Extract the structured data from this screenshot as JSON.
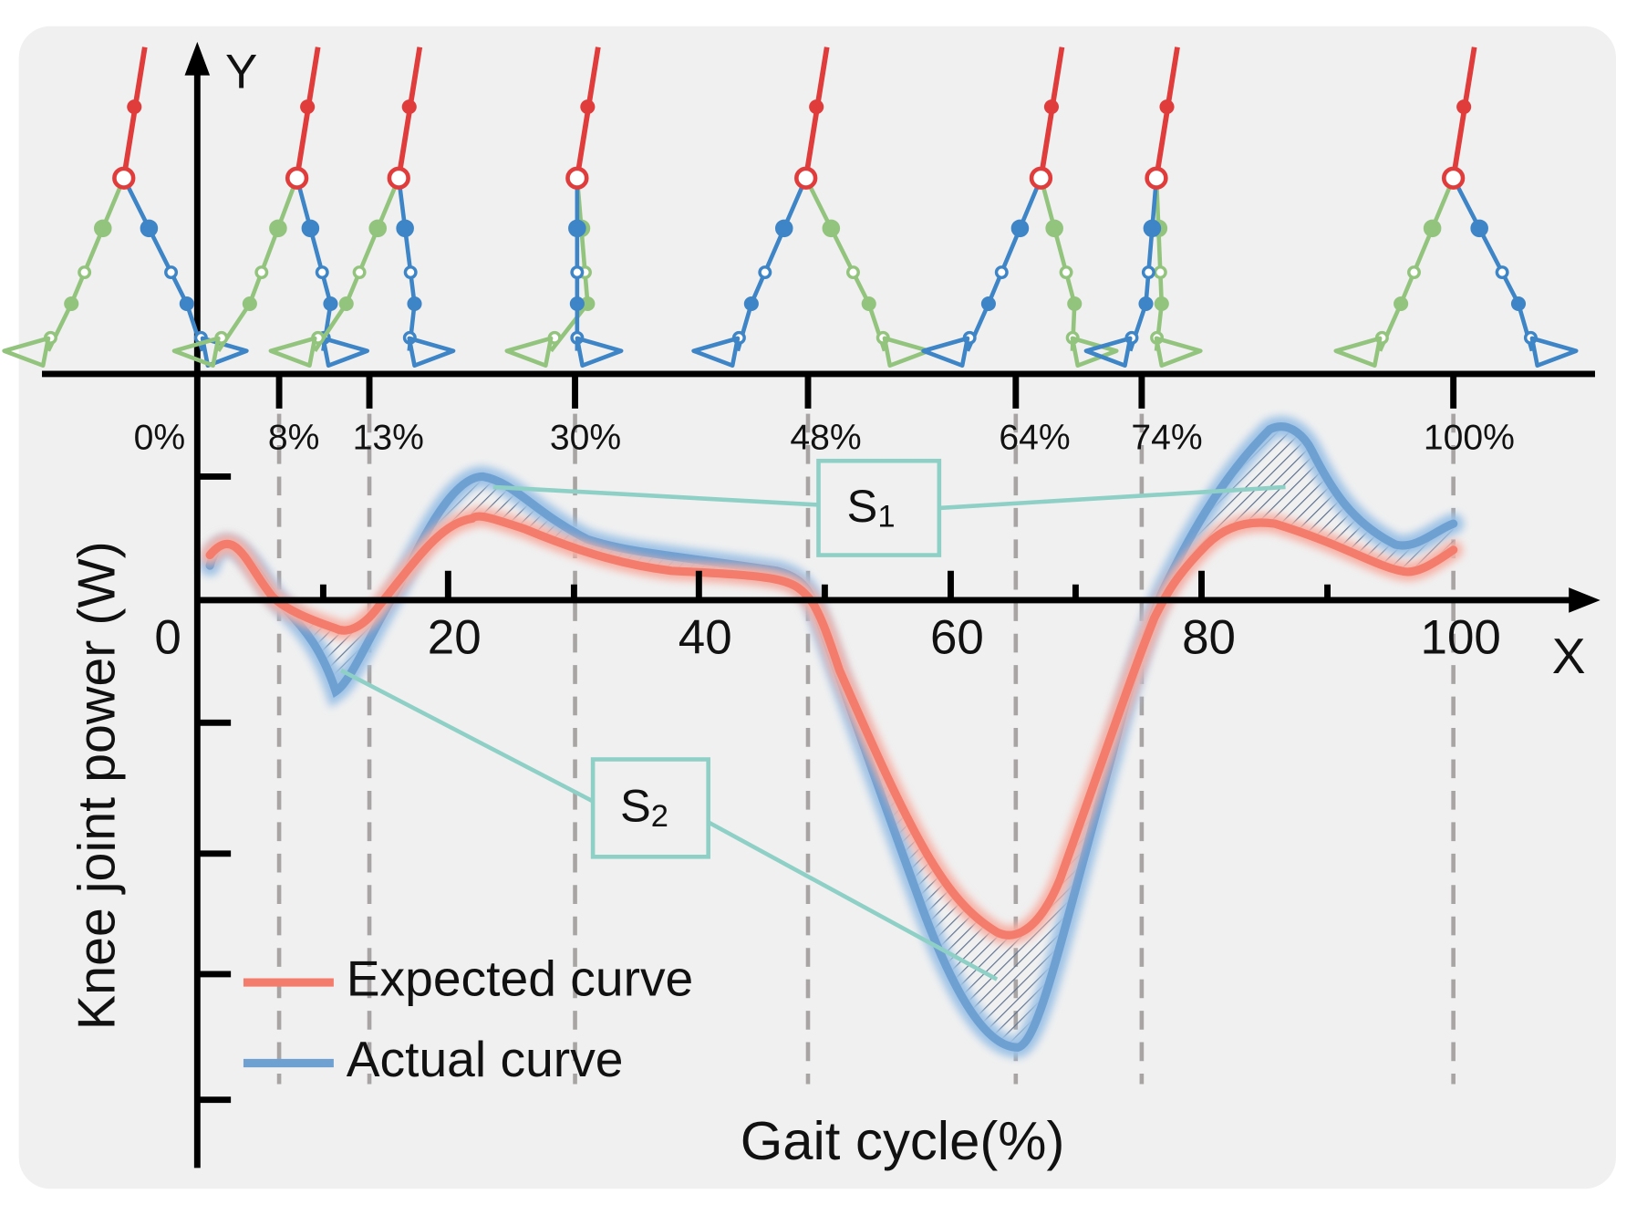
{
  "axes": {
    "y_letter": "Y",
    "x_letter": "X",
    "y_title": "Knee joint power (W)",
    "x_title": "Gait cycle(%)"
  },
  "x_tick_labels": [
    "0",
    "20",
    "40",
    "60",
    "80",
    "100"
  ],
  "phases": [
    "0%",
    "8%",
    "13%",
    "30%",
    "48%",
    "64%",
    "74%",
    "100%"
  ],
  "areas": [
    {
      "letter": "S",
      "sub": "1"
    },
    {
      "letter": "S",
      "sub": "2"
    }
  ],
  "legend": [
    "Expected curve",
    "Actual curve"
  ]
}
